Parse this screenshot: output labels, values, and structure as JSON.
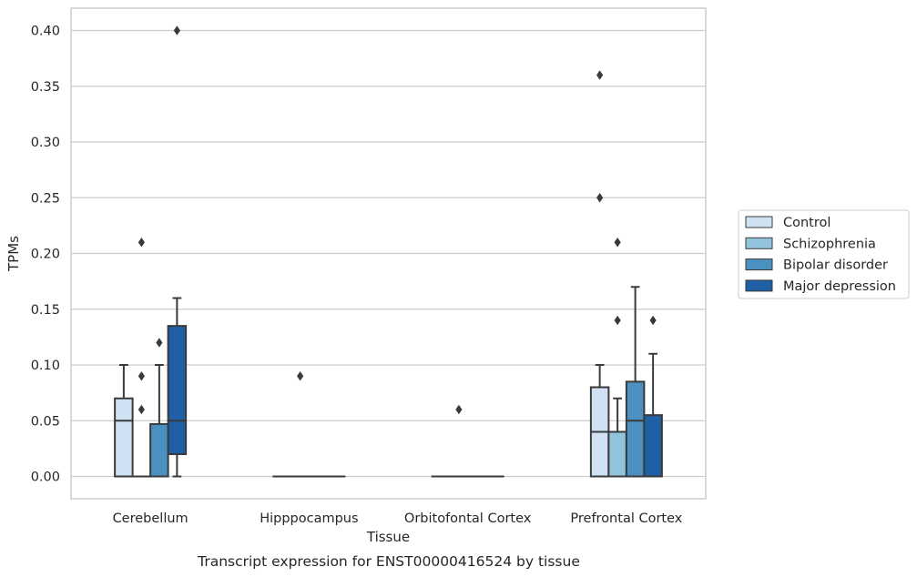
{
  "chart_data": {
    "type": "boxplot",
    "title": "Transcript expression for ENST00000416524 by tissue",
    "xlabel": "Tissue",
    "ylabel": "TPMs",
    "ylim": [
      -0.02,
      0.42
    ],
    "yticks": [
      0.0,
      0.05,
      0.1,
      0.15,
      0.2,
      0.25,
      0.3,
      0.35,
      0.4
    ],
    "ytick_labels": [
      "0.00",
      "0.05",
      "0.10",
      "0.15",
      "0.20",
      "0.25",
      "0.30",
      "0.35",
      "0.40"
    ],
    "grid": "horizontal",
    "legend_position": "right",
    "categories": [
      "Cerebellum",
      "Hipppocampus",
      "Orbitofontal Cortex",
      "Prefrontal Cortex"
    ],
    "series": [
      {
        "name": "Control",
        "color": "#cfe1f2",
        "boxes": [
          {
            "q1": 0.0,
            "median": 0.05,
            "q3": 0.07,
            "whislo": 0.0,
            "whishi": 0.1,
            "fliers": []
          },
          {
            "q1": 0.0,
            "median": 0.0,
            "q3": 0.0,
            "whislo": 0.0,
            "whishi": 0.0,
            "fliers": []
          },
          {
            "q1": 0.0,
            "median": 0.0,
            "q3": 0.0,
            "whislo": 0.0,
            "whishi": 0.0,
            "fliers": []
          },
          {
            "q1": 0.0,
            "median": 0.04,
            "q3": 0.08,
            "whislo": 0.0,
            "whishi": 0.1,
            "fliers": [
              0.25,
              0.36
            ]
          }
        ]
      },
      {
        "name": "Schizophrenia",
        "color": "#93c4de",
        "boxes": [
          {
            "q1": 0.0,
            "median": 0.0,
            "q3": 0.0,
            "whislo": 0.0,
            "whishi": 0.0,
            "fliers": [
              0.06,
              0.09,
              0.21
            ]
          },
          {
            "q1": 0.0,
            "median": 0.0,
            "q3": 0.0,
            "whislo": 0.0,
            "whishi": 0.0,
            "fliers": [
              0.09
            ]
          },
          {
            "q1": 0.0,
            "median": 0.0,
            "q3": 0.0,
            "whislo": 0.0,
            "whishi": 0.0,
            "fliers": [
              0.06
            ]
          },
          {
            "q1": 0.0,
            "median": 0.04,
            "q3": 0.04,
            "whislo": 0.0,
            "whishi": 0.07,
            "fliers": [
              0.14,
              0.21
            ]
          }
        ]
      },
      {
        "name": "Bipolar disorder",
        "color": "#4a91c2",
        "boxes": [
          {
            "q1": 0.0,
            "median": 0.0,
            "q3": 0.047,
            "whislo": 0.0,
            "whishi": 0.1,
            "fliers": [
              0.12
            ]
          },
          {
            "q1": 0.0,
            "median": 0.0,
            "q3": 0.0,
            "whislo": 0.0,
            "whishi": 0.0,
            "fliers": []
          },
          {
            "q1": 0.0,
            "median": 0.0,
            "q3": 0.0,
            "whislo": 0.0,
            "whishi": 0.0,
            "fliers": []
          },
          {
            "q1": 0.0,
            "median": 0.05,
            "q3": 0.085,
            "whislo": 0.0,
            "whishi": 0.17,
            "fliers": []
          }
        ]
      },
      {
        "name": "Major depression",
        "color": "#1f5fa6",
        "boxes": [
          {
            "q1": 0.02,
            "median": 0.05,
            "q3": 0.135,
            "whislo": 0.0,
            "whishi": 0.16,
            "fliers": [
              0.4
            ]
          },
          {
            "q1": 0.0,
            "median": 0.0,
            "q3": 0.0,
            "whislo": 0.0,
            "whishi": 0.0,
            "fliers": []
          },
          {
            "q1": 0.0,
            "median": 0.0,
            "q3": 0.0,
            "whislo": 0.0,
            "whishi": 0.0,
            "fliers": []
          },
          {
            "q1": 0.0,
            "median": 0.0,
            "q3": 0.055,
            "whislo": 0.0,
            "whishi": 0.11,
            "fliers": [
              0.14
            ]
          }
        ]
      }
    ]
  }
}
